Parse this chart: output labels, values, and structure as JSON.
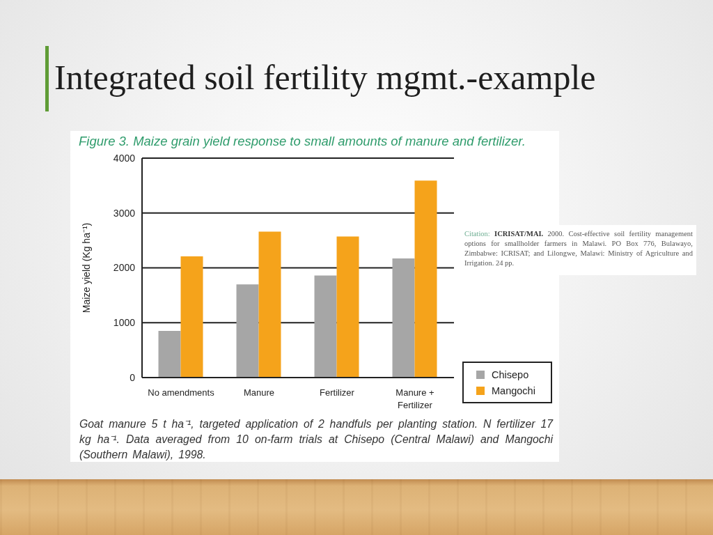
{
  "chart_data": {
    "type": "bar",
    "title": "Integrated soil fertility mgmt.-example",
    "subtitle": "Figure 3. Maize grain yield response to small amounts of manure and fertilizer.",
    "ylabel": "Maize yield (Kg ha⁻¹)",
    "categories": [
      "No amendments",
      "Manure",
      "Fertilizer",
      "Manure + Fertilizer"
    ],
    "series": [
      {
        "name": "Chisepo",
        "color": "#a6a6a6",
        "values": [
          850,
          1700,
          1860,
          2170
        ]
      },
      {
        "name": "Mangochi",
        "color": "#f5a31b",
        "values": [
          2210,
          2660,
          2570,
          3590
        ]
      }
    ],
    "ylim": [
      0,
      4000
    ],
    "yticks": [
      0,
      1000,
      2000,
      3000,
      4000
    ],
    "grid": "y",
    "legend": "bottom right",
    "annotations": [
      "Goat manure 5 t ha⁻¹, targeted application of 2 handfuls per planting station. N fertilizer 17 kg ha⁻¹. Data averaged from 10 on-farm trials at Chisepo (Central Malawi) and Mangochi (Southern Malawi), 1998.",
      "Citation: ICRISAT/MAI. 2000. Cost-effective soil fertility management options for smallholder farmers in Malawi. PO Box 776, Bulawayo, Zimbabwe: ICRISAT; and Lilongwe, Malawi: Ministry of Agriculture and Irrigation. 24 pp."
    ]
  }
}
